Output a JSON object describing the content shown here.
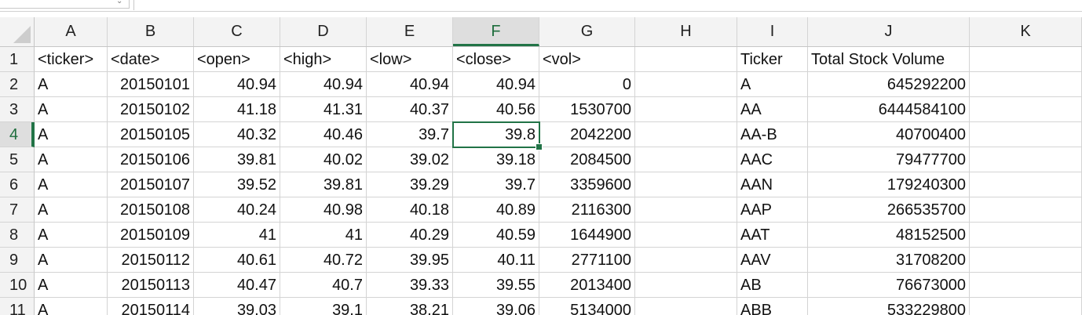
{
  "columns": [
    "A",
    "B",
    "C",
    "D",
    "E",
    "F",
    "G",
    "H",
    "I",
    "J",
    "K"
  ],
  "active_column": "F",
  "active_row": "4",
  "rows": [
    {
      "num": "1",
      "cells": [
        "<ticker>",
        "<date>",
        "<open>",
        "<high>",
        "<low>",
        "<close>",
        "<vol>",
        "",
        "Ticker",
        "Total Stock Volume",
        ""
      ]
    },
    {
      "num": "2",
      "cells": [
        "A",
        "20150101",
        "40.94",
        "40.94",
        "40.94",
        "40.94",
        "0",
        "",
        "A",
        "645292200",
        ""
      ]
    },
    {
      "num": "3",
      "cells": [
        "A",
        "20150102",
        "41.18",
        "41.31",
        "40.37",
        "40.56",
        "1530700",
        "",
        "AA",
        "6444584100",
        ""
      ]
    },
    {
      "num": "4",
      "cells": [
        "A",
        "20150105",
        "40.32",
        "40.46",
        "39.7",
        "39.8",
        "2042200",
        "",
        "AA-B",
        "40700400",
        ""
      ]
    },
    {
      "num": "5",
      "cells": [
        "A",
        "20150106",
        "39.81",
        "40.02",
        "39.02",
        "39.18",
        "2084500",
        "",
        "AAC",
        "79477700",
        ""
      ]
    },
    {
      "num": "6",
      "cells": [
        "A",
        "20150107",
        "39.52",
        "39.81",
        "39.29",
        "39.7",
        "3359600",
        "",
        "AAN",
        "179240300",
        ""
      ]
    },
    {
      "num": "7",
      "cells": [
        "A",
        "20150108",
        "40.24",
        "40.98",
        "40.18",
        "40.89",
        "2116300",
        "",
        "AAP",
        "266535700",
        ""
      ]
    },
    {
      "num": "8",
      "cells": [
        "A",
        "20150109",
        "41",
        "41",
        "40.29",
        "40.59",
        "1644900",
        "",
        "AAT",
        "48152500",
        ""
      ]
    },
    {
      "num": "9",
      "cells": [
        "A",
        "20150112",
        "40.61",
        "40.72",
        "39.95",
        "40.11",
        "2771100",
        "",
        "AAV",
        "31708200",
        ""
      ]
    },
    {
      "num": "10",
      "cells": [
        "A",
        "20150113",
        "40.47",
        "40.7",
        "39.33",
        "39.55",
        "2013400",
        "",
        "AB",
        "76673000",
        ""
      ]
    },
    {
      "num": "11",
      "cells": [
        "A",
        "20150114",
        "39.03",
        "39.1",
        "38.21",
        "39.06",
        "5134000",
        "",
        "ABB",
        "533229800",
        ""
      ]
    }
  ]
}
